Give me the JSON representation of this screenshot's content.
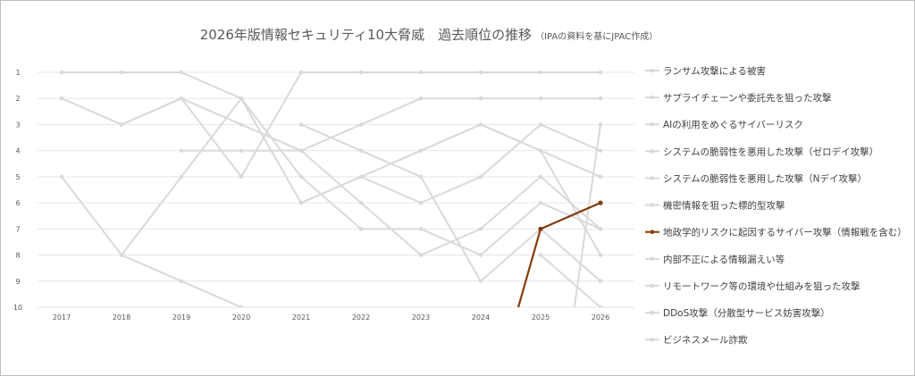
{
  "title": "2026年版情報セキュリティ10大脅威　過去順位の推移",
  "subtitle": "（IPAの資料を基にJPAC作成）",
  "colors": {
    "highlight": "#843c0c",
    "muted": "#d9d9d9",
    "grid": "#e6e6e6",
    "text": "#595959"
  },
  "chart_data": {
    "type": "line",
    "title": "2026年版情報セキュリティ10大脅威　過去順位の推移",
    "subtitle": "（IPAの資料を基にJPAC作成）",
    "x": [
      "2017",
      "2018",
      "2019",
      "2020",
      "2021",
      "2022",
      "2023",
      "2024",
      "2025",
      "2026"
    ],
    "ylim": [
      1,
      10
    ],
    "y_reversed": true,
    "y_ticks": [
      "1",
      "2",
      "3",
      "4",
      "5",
      "6",
      "7",
      "8",
      "9",
      "10"
    ],
    "grid": true,
    "legend_position": "right",
    "series": [
      {
        "name": "ランサム攻撃による被害",
        "values": [
          2,
          3,
          2,
          5,
          1,
          1,
          1,
          1,
          1,
          1
        ]
      },
      {
        "name": "サプライチェーンや委託先を狙った攻撃",
        "values": [
          null,
          null,
          4,
          4,
          4,
          3,
          2,
          2,
          2,
          2
        ]
      },
      {
        "name": "AIの利用をめぐるサイバーリスク",
        "values": [
          null,
          null,
          null,
          null,
          null,
          null,
          null,
          null,
          null,
          3
        ]
      },
      {
        "name": "システムの脆弱性を悪用した攻撃（ゼロデイ攻撃）",
        "values": [
          null,
          null,
          null,
          null,
          null,
          5,
          6,
          5,
          3,
          4
        ]
      },
      {
        "name": "システムの脆弱性を悪用した攻撃（Nデイ攻撃）",
        "values": [
          null,
          null,
          null,
          null,
          6,
          5,
          4,
          3,
          4,
          5
        ]
      },
      {
        "name": "機密情報を狙った標的型攻撃",
        "values": [
          1,
          1,
          1,
          2,
          5,
          7,
          7,
          8,
          6,
          7
        ]
      },
      {
        "name": "地政学的リスクに起因するサイバー攻撃（情報戦を含む）",
        "values": [
          null,
          null,
          null,
          null,
          null,
          null,
          null,
          null,
          7,
          6
        ]
      },
      {
        "name": "内部不正による情報漏えい等",
        "values": [
          null,
          8,
          5,
          2,
          6,
          5,
          4,
          3,
          4,
          8
        ]
      },
      {
        "name": "リモートワーク等の環境や仕組みを狙った攻撃",
        "values": [
          null,
          null,
          null,
          null,
          3,
          4,
          5,
          9,
          7,
          9
        ]
      },
      {
        "name": "DDoS攻撃（分散型サービス妨害攻撃）",
        "values": [
          5,
          8,
          9,
          10,
          null,
          null,
          null,
          null,
          8,
          10
        ]
      },
      {
        "name": "ビジネスメール詐欺",
        "values": [
          null,
          3,
          2,
          3,
          4,
          6,
          8,
          7,
          5,
          7
        ]
      }
    ],
    "highlighted_series": "地政学的リスクに起因するサイバー攻撃（情報戦を含む）"
  }
}
